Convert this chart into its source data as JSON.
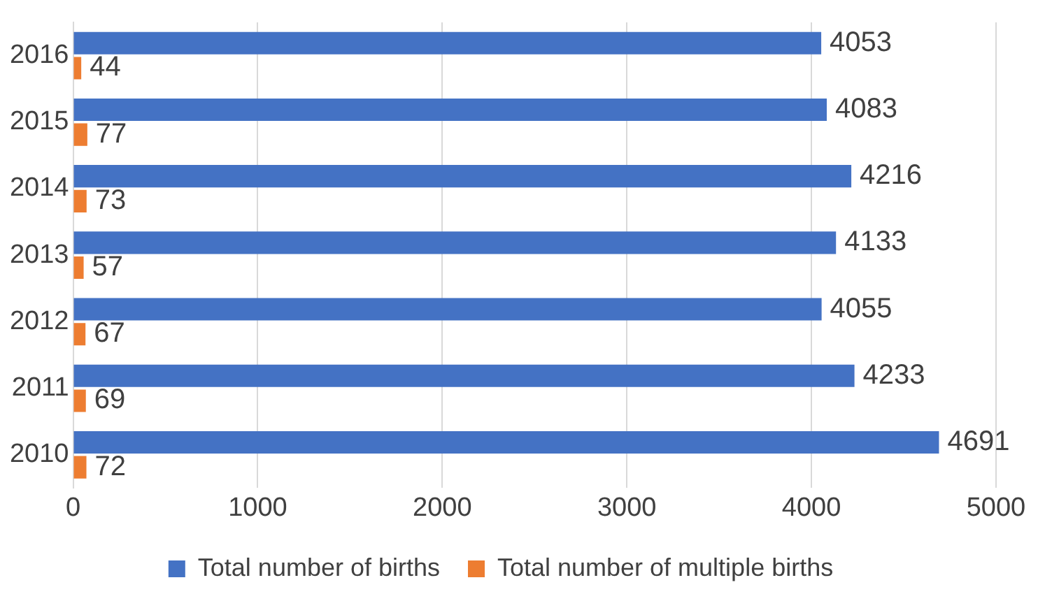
{
  "chart_data": {
    "type": "bar",
    "orientation": "horizontal",
    "categories": [
      "2016",
      "2015",
      "2014",
      "2013",
      "2012",
      "2011",
      "2010"
    ],
    "series": [
      {
        "name": "Total number of births",
        "color": "#4472c4",
        "values": [
          4053,
          4083,
          4216,
          4133,
          4055,
          4233,
          4691
        ]
      },
      {
        "name": "Total number of multiple births",
        "color": "#ed7d31",
        "values": [
          44,
          77,
          73,
          57,
          67,
          69,
          72
        ]
      }
    ],
    "xlim": [
      0,
      5000
    ],
    "xticks": [
      0,
      1000,
      2000,
      3000,
      4000,
      5000
    ],
    "grid": "x",
    "legend": "bottom",
    "data_labels": true
  }
}
